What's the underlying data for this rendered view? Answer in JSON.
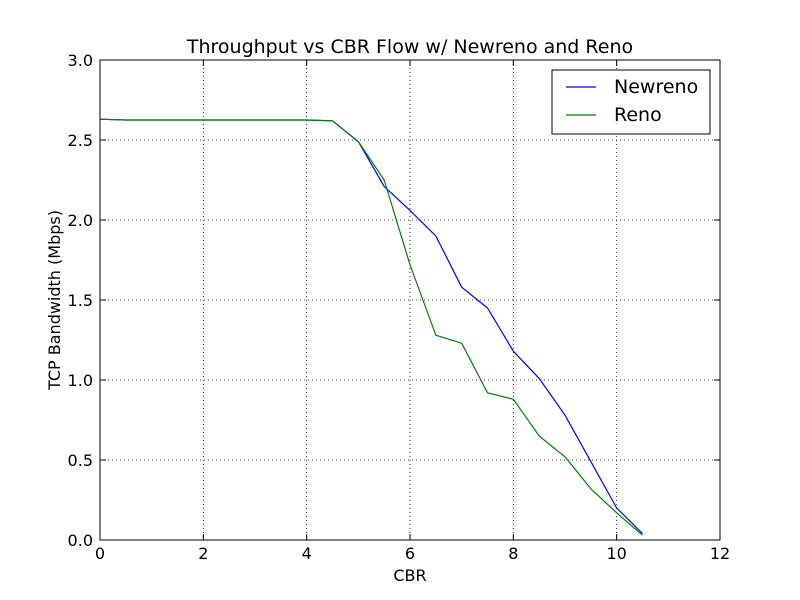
{
  "chart_data": {
    "type": "line",
    "title": "Throughput vs CBR Flow w/ Newreno and Reno",
    "xlabel": "CBR",
    "ylabel": "TCP Bandwidth (Mbps)",
    "xlim": [
      0,
      12
    ],
    "ylim": [
      0,
      3.0
    ],
    "xticks": [
      0,
      2,
      4,
      6,
      8,
      10,
      12
    ],
    "xtick_labels": [
      "0",
      "2",
      "4",
      "6",
      "8",
      "10",
      "12"
    ],
    "yticks": [
      0,
      0.5,
      1.0,
      1.5,
      2.0,
      2.5,
      3.0
    ],
    "ytick_labels": [
      "0.0",
      "0.5",
      "1.0",
      "1.5",
      "2.0",
      "2.5",
      "3.0"
    ],
    "grid": true,
    "legend_position": "top-right",
    "series": [
      {
        "name": "Newreno",
        "color": "#0000ff",
        "x": [
          0,
          0.5,
          1,
          1.5,
          2,
          2.5,
          3,
          3.5,
          4,
          4.5,
          5,
          5.5,
          6,
          6.5,
          7,
          7.5,
          8,
          8.5,
          9,
          9.5,
          10,
          10.5
        ],
        "y": [
          2.63,
          2.625,
          2.625,
          2.625,
          2.625,
          2.625,
          2.625,
          2.625,
          2.625,
          2.62,
          2.49,
          2.21,
          2.06,
          1.9,
          1.58,
          1.45,
          1.18,
          1.01,
          0.78,
          0.49,
          0.2,
          0.04
        ]
      },
      {
        "name": "Reno",
        "color": "#008000",
        "x": [
          0,
          0.5,
          1,
          1.5,
          2,
          2.5,
          3,
          3.5,
          4,
          4.5,
          5,
          5.5,
          6,
          6.5,
          7,
          7.5,
          8,
          8.5,
          9,
          9.5,
          10,
          10.5
        ],
        "y": [
          2.63,
          2.625,
          2.625,
          2.625,
          2.625,
          2.625,
          2.625,
          2.625,
          2.625,
          2.62,
          2.49,
          2.25,
          1.72,
          1.28,
          1.23,
          0.92,
          0.88,
          0.65,
          0.52,
          0.32,
          0.17,
          0.03
        ]
      }
    ]
  }
}
